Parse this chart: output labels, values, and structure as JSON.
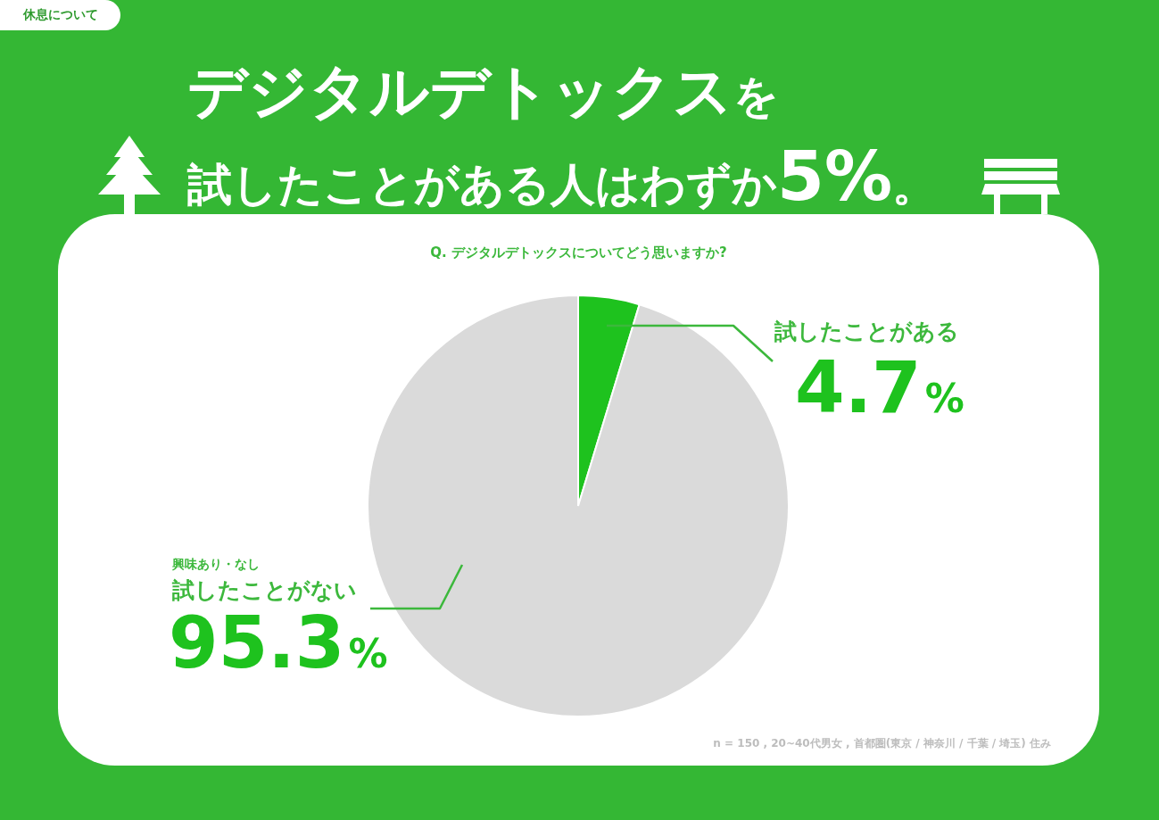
{
  "chart_data": {
    "type": "pie",
    "title": "デジタルデトックスを試したことがある人はわずか5%。",
    "subtitle": "Q. デジタルデトックスについてどう思いますか?",
    "categories": [
      "試したことがある",
      "試したことがない"
    ],
    "values": [
      4.7,
      95.3
    ],
    "colors": [
      "#1ec21e",
      "#dadada"
    ],
    "value_labels": [
      "4.7%",
      "95.3%"
    ],
    "annotations": [
      "休息について",
      "興味あり・なし",
      "n = 150 , 20~40代男女 , 首都圏(東京 / 神奈川 / 千葉 / 埼玉) 住み"
    ]
  }
}
